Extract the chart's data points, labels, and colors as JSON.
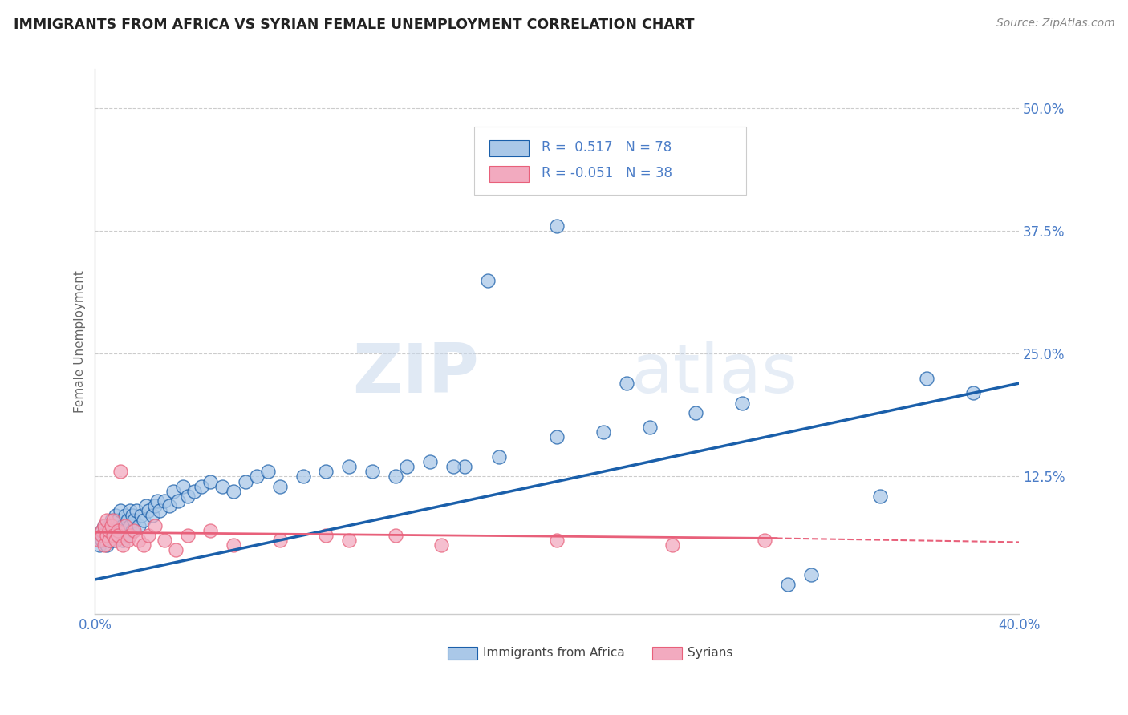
{
  "title": "IMMIGRANTS FROM AFRICA VS SYRIAN FEMALE UNEMPLOYMENT CORRELATION CHART",
  "source": "Source: ZipAtlas.com",
  "ylabel": "Female Unemployment",
  "xlim": [
    0.0,
    0.4
  ],
  "ylim": [
    -0.015,
    0.54
  ],
  "ytick_vals": [
    0.0,
    0.125,
    0.25,
    0.375,
    0.5
  ],
  "ytick_labels": [
    "",
    "12.5%",
    "25.0%",
    "37.5%",
    "50.0%"
  ],
  "xtick_vals": [
    0.0,
    0.1,
    0.2,
    0.3,
    0.4
  ],
  "xtick_labels": [
    "0.0%",
    "",
    "",
    "",
    "40.0%"
  ],
  "color_blue": "#aac8e8",
  "color_pink": "#f2aabf",
  "trendline_blue": "#1a5faa",
  "trendline_pink": "#e8607a",
  "watermark_zip": "ZIP",
  "watermark_atlas": "atlas",
  "blue_scatter_x": [
    0.002,
    0.003,
    0.003,
    0.004,
    0.004,
    0.005,
    0.005,
    0.006,
    0.006,
    0.007,
    0.007,
    0.008,
    0.008,
    0.009,
    0.009,
    0.01,
    0.01,
    0.011,
    0.011,
    0.012,
    0.012,
    0.013,
    0.013,
    0.014,
    0.014,
    0.015,
    0.015,
    0.016,
    0.016,
    0.017,
    0.018,
    0.019,
    0.02,
    0.021,
    0.022,
    0.023,
    0.025,
    0.026,
    0.027,
    0.028,
    0.03,
    0.032,
    0.034,
    0.036,
    0.038,
    0.04,
    0.043,
    0.046,
    0.05,
    0.055,
    0.06,
    0.065,
    0.07,
    0.075,
    0.08,
    0.09,
    0.1,
    0.11,
    0.12,
    0.13,
    0.145,
    0.16,
    0.175,
    0.2,
    0.22,
    0.24,
    0.26,
    0.28,
    0.2,
    0.17,
    0.155,
    0.3,
    0.31,
    0.34,
    0.36,
    0.38,
    0.23,
    0.135
  ],
  "blue_scatter_y": [
    0.055,
    0.06,
    0.07,
    0.065,
    0.075,
    0.055,
    0.07,
    0.06,
    0.075,
    0.065,
    0.08,
    0.07,
    0.06,
    0.075,
    0.085,
    0.065,
    0.08,
    0.07,
    0.09,
    0.075,
    0.06,
    0.085,
    0.07,
    0.065,
    0.08,
    0.075,
    0.09,
    0.07,
    0.085,
    0.08,
    0.09,
    0.075,
    0.085,
    0.08,
    0.095,
    0.09,
    0.085,
    0.095,
    0.1,
    0.09,
    0.1,
    0.095,
    0.11,
    0.1,
    0.115,
    0.105,
    0.11,
    0.115,
    0.12,
    0.115,
    0.11,
    0.12,
    0.125,
    0.13,
    0.115,
    0.125,
    0.13,
    0.135,
    0.13,
    0.125,
    0.14,
    0.135,
    0.145,
    0.165,
    0.17,
    0.175,
    0.19,
    0.2,
    0.38,
    0.325,
    0.135,
    0.015,
    0.025,
    0.105,
    0.225,
    0.21,
    0.22,
    0.135
  ],
  "pink_scatter_x": [
    0.002,
    0.003,
    0.003,
    0.004,
    0.004,
    0.005,
    0.005,
    0.006,
    0.006,
    0.007,
    0.008,
    0.008,
    0.009,
    0.01,
    0.01,
    0.011,
    0.012,
    0.013,
    0.014,
    0.015,
    0.017,
    0.019,
    0.021,
    0.023,
    0.026,
    0.03,
    0.035,
    0.04,
    0.05,
    0.06,
    0.08,
    0.1,
    0.11,
    0.13,
    0.15,
    0.2,
    0.25,
    0.29
  ],
  "pink_scatter_y": [
    0.06,
    0.07,
    0.065,
    0.055,
    0.075,
    0.065,
    0.08,
    0.06,
    0.07,
    0.075,
    0.065,
    0.08,
    0.06,
    0.07,
    0.065,
    0.13,
    0.055,
    0.075,
    0.06,
    0.065,
    0.07,
    0.06,
    0.055,
    0.065,
    0.075,
    0.06,
    0.05,
    0.065,
    0.07,
    0.055,
    0.06,
    0.065,
    0.06,
    0.065,
    0.055,
    0.06,
    0.055,
    0.06
  ],
  "blue_trend_x0": 0.0,
  "blue_trend_x1": 0.4,
  "blue_trend_y0": 0.02,
  "blue_trend_y1": 0.22,
  "pink_trend_x0": 0.0,
  "pink_trend_x1": 0.295,
  "pink_trend_x2": 0.4,
  "pink_trend_y0": 0.068,
  "pink_trend_y1": 0.062,
  "pink_trend_y2": 0.058
}
